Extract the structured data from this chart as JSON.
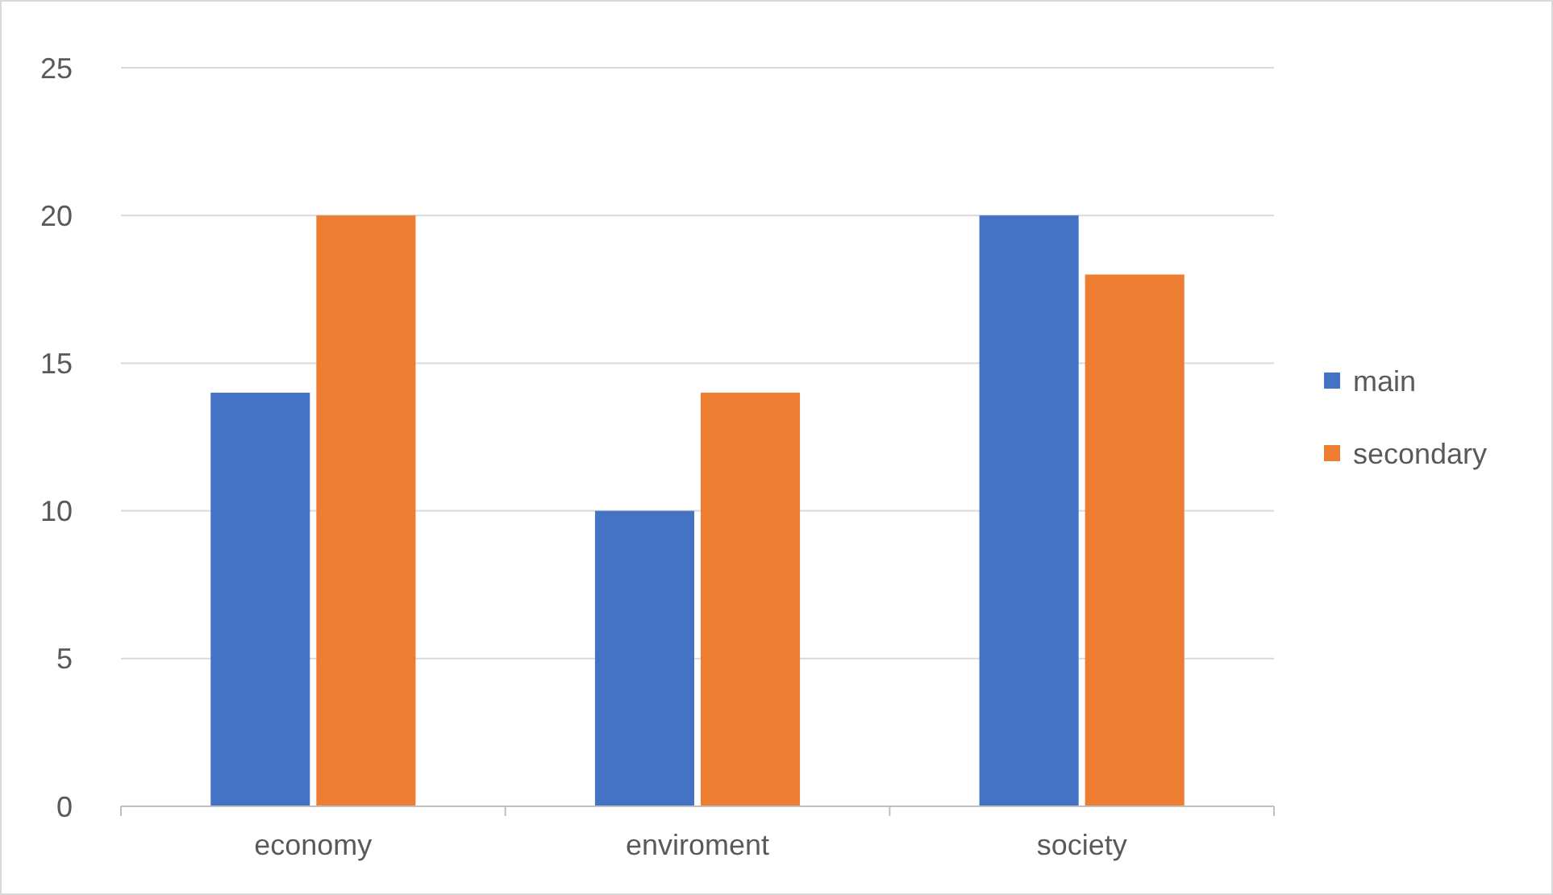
{
  "chart_data": {
    "type": "bar",
    "categories": [
      "economy",
      "enviroment",
      "society"
    ],
    "series": [
      {
        "name": "main",
        "color": "#4472c4",
        "values": [
          14,
          10,
          20
        ]
      },
      {
        "name": "secondary",
        "color": "#ed7d31",
        "values": [
          20,
          14,
          18
        ]
      }
    ],
    "ylim": [
      0,
      25
    ],
    "yticks": [
      0,
      5,
      10,
      15,
      20,
      25
    ],
    "grid": "y",
    "legend": "right"
  }
}
